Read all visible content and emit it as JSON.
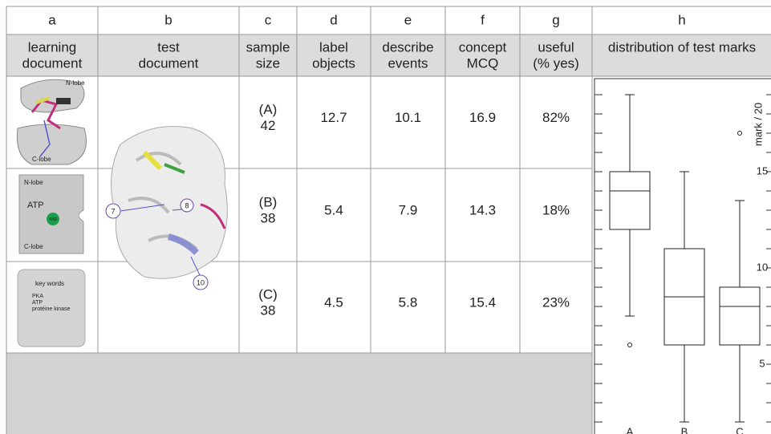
{
  "table": {
    "column_letters": [
      "a",
      "b",
      "c",
      "d",
      "e",
      "f",
      "g",
      "h"
    ],
    "headers": [
      [
        "learning",
        "document"
      ],
      [
        "test",
        "document"
      ],
      [
        "sample",
        "size"
      ],
      [
        "label",
        "objects"
      ],
      [
        "describe",
        "events"
      ],
      [
        "concept",
        "MCQ"
      ],
      [
        "useful",
        "(% yes)"
      ],
      [
        "distribution of test marks"
      ]
    ],
    "rows": [
      {
        "group": "(A)",
        "sample_size": 42,
        "label_objects": 12.7,
        "describe_events": 10.1,
        "concept_mcq": 16.9,
        "useful": "82%"
      },
      {
        "group": "(B)",
        "sample_size": 38,
        "label_objects": 5.4,
        "describe_events": 7.9,
        "concept_mcq": 14.3,
        "useful": "18%"
      },
      {
        "group": "(C)",
        "sample_size": 38,
        "label_objects": 4.5,
        "describe_events": 5.8,
        "concept_mcq": 15.4,
        "useful": "23%"
      }
    ],
    "learning_images": [
      {
        "labels": [
          "N-lobe",
          "C-lobe"
        ]
      },
      {
        "labels": [
          "N-lobe",
          "ATP",
          "asp",
          "C-lobe"
        ]
      },
      {
        "labels": [
          "key words",
          "PKA",
          "ATP",
          "protéine kinase"
        ]
      }
    ],
    "test_image": {
      "labels": [
        "7",
        "8",
        "10"
      ]
    }
  },
  "chart_data": {
    "type": "box",
    "y_label": "mark / 20",
    "categories": [
      "A",
      "B",
      "C"
    ],
    "whisker_high": [
      19,
      15,
      13.5
    ],
    "q3": [
      15,
      11,
      9
    ],
    "median": [
      14,
      8.5,
      8
    ],
    "q1": [
      12,
      6,
      6
    ],
    "whisker_low": [
      7.5,
      2,
      2
    ],
    "outliers": [
      [
        6
      ],
      [],
      [
        17
      ]
    ],
    "ylim": [
      1,
      20
    ],
    "yticks": [
      5,
      10,
      15
    ],
    "minor_yticks": [
      2,
      3,
      4,
      6,
      7,
      8,
      9,
      11,
      12,
      13,
      14,
      16,
      17,
      18,
      19
    ]
  }
}
